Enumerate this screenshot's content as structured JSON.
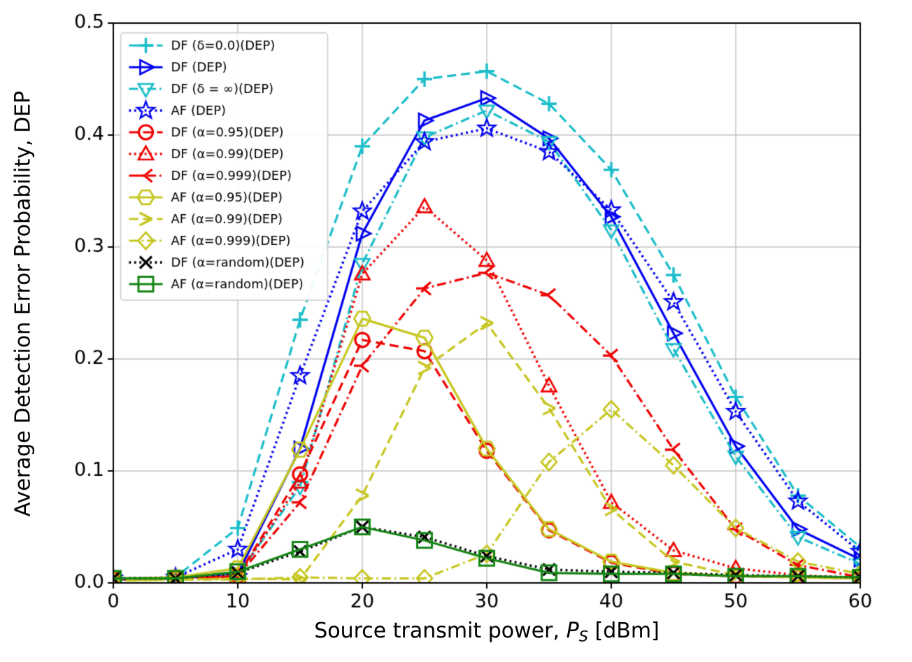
{
  "chart_data": {
    "type": "line",
    "title": "",
    "xlabel_parts": {
      "prefix": "Source transmit power, ",
      "var": "P",
      "sub": "S",
      "suffix": " [dBm]"
    },
    "ylabel": "Average Detection Error Probability, DEP",
    "xlim": [
      0,
      60
    ],
    "ylim": [
      0,
      0.5
    ],
    "x_ticks": [
      0,
      10,
      20,
      30,
      40,
      50,
      60
    ],
    "y_tick_values": [
      0.0,
      0.1,
      0.2,
      0.3,
      0.4,
      0.5
    ],
    "y_tick_labels": [
      "0.0",
      "0.1",
      "0.2",
      "0.3",
      "0.4",
      "0.5"
    ],
    "grid": true,
    "legend_position": "upper-left",
    "x": [
      0,
      5,
      10,
      15,
      20,
      25,
      30,
      35,
      40,
      45,
      50,
      55,
      60
    ],
    "series": [
      {
        "name": "DF (δ=0.0)(DEP)",
        "color": "#19bdc9",
        "linestyle": "dashed",
        "marker": "plus",
        "values": [
          0.004,
          0.005,
          0.049,
          0.235,
          0.39,
          0.45,
          0.457,
          0.428,
          0.369,
          0.275,
          0.166,
          0.078,
          0.032
        ]
      },
      {
        "name": "DF (DEP)",
        "color": "#0000f0",
        "linestyle": "solid",
        "marker": "triangle-right",
        "values": [
          0.003,
          0.004,
          0.008,
          0.12,
          0.312,
          0.413,
          0.433,
          0.397,
          0.327,
          0.223,
          0.122,
          0.048,
          0.021
        ]
      },
      {
        "name": "DF (δ = ∞)(DEP)",
        "color": "#19bdc9",
        "linestyle": "dashdot",
        "marker": "triangle-down",
        "values": [
          0.003,
          0.004,
          0.007,
          0.086,
          0.285,
          0.398,
          0.422,
          0.394,
          0.315,
          0.209,
          0.113,
          0.041,
          0.017
        ]
      },
      {
        "name": "AF (DEP)",
        "color": "#0000f0",
        "linestyle": "dotted",
        "marker": "star",
        "values": [
          0.004,
          0.005,
          0.03,
          0.185,
          0.332,
          0.394,
          0.406,
          0.385,
          0.333,
          0.251,
          0.153,
          0.073,
          0.028
        ]
      },
      {
        "name": "DF (α=0.95)(DEP)",
        "color": "#ef0000",
        "linestyle": "dashed",
        "marker": "circle",
        "values": [
          0.003,
          0.004,
          0.006,
          0.097,
          0.217,
          0.207,
          0.118,
          0.047,
          0.018,
          0.008,
          0.006,
          0.005,
          0.004
        ]
      },
      {
        "name": "DF (α=0.99)(DEP)",
        "color": "#ef0000",
        "linestyle": "dotted",
        "marker": "triangle-up",
        "values": [
          0.003,
          0.004,
          0.006,
          0.09,
          0.276,
          0.336,
          0.288,
          0.176,
          0.072,
          0.029,
          0.013,
          0.007,
          0.004
        ]
      },
      {
        "name": "DF (α=0.999)(DEP)",
        "color": "#ef0000",
        "linestyle": "dashdot",
        "marker": "fork-right",
        "values": [
          0.003,
          0.004,
          0.006,
          0.072,
          0.194,
          0.263,
          0.277,
          0.257,
          0.203,
          0.119,
          0.048,
          0.016,
          0.005
        ]
      },
      {
        "name": "AF (α=0.95)(DEP)",
        "color": "#c6c61f",
        "linestyle": "solid",
        "marker": "hexagon",
        "values": [
          0.004,
          0.005,
          0.013,
          0.119,
          0.236,
          0.219,
          0.12,
          0.048,
          0.019,
          0.009,
          0.006,
          0.005,
          0.004
        ]
      },
      {
        "name": "AF (α=0.99)(DEP)",
        "color": "#c6c61f",
        "linestyle": "dashed",
        "marker": "chevron-right",
        "values": [
          0.002,
          0.003,
          0.004,
          0.003,
          0.078,
          0.192,
          0.232,
          0.156,
          0.066,
          0.019,
          0.007,
          0.005,
          0.004
        ]
      },
      {
        "name": "AF (α=0.999)(DEP)",
        "color": "#c6c61f",
        "linestyle": "dashdot",
        "marker": "diamond",
        "values": [
          0.002,
          0.003,
          0.003,
          0.005,
          0.004,
          0.004,
          0.026,
          0.108,
          0.155,
          0.105,
          0.049,
          0.019,
          0.008
        ]
      },
      {
        "name": "DF (α=random)(DEP)",
        "color": "#000000",
        "linestyle": "dotted",
        "marker": "x",
        "values": [
          0.004,
          0.004,
          0.009,
          0.028,
          0.05,
          0.041,
          0.024,
          0.012,
          0.01,
          0.009,
          0.007,
          0.006,
          0.005
        ]
      },
      {
        "name": "AF (α=random)(DEP)",
        "color": "#158515",
        "linestyle": "solid",
        "marker": "square",
        "values": [
          0.004,
          0.004,
          0.01,
          0.03,
          0.05,
          0.038,
          0.022,
          0.009,
          0.008,
          0.008,
          0.006,
          0.006,
          0.005
        ]
      }
    ]
  }
}
